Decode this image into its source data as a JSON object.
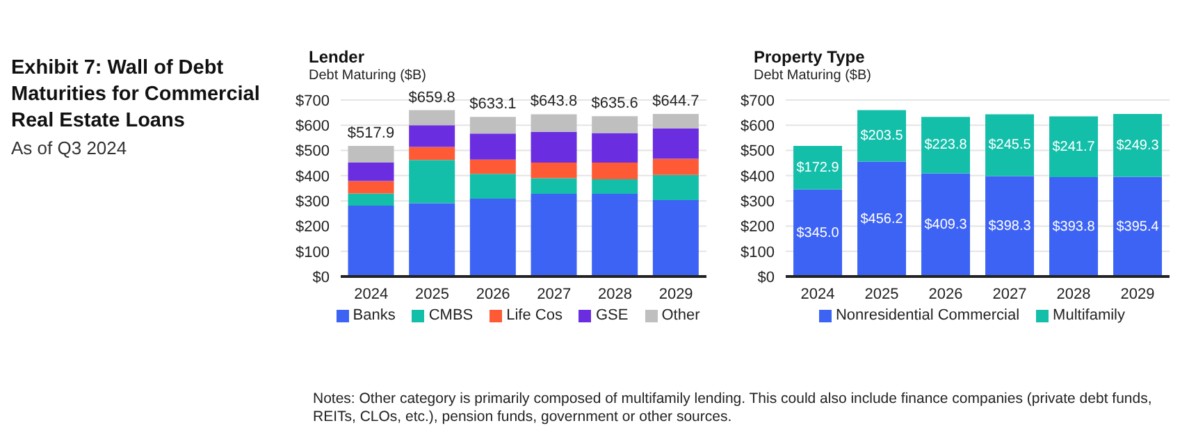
{
  "chart_data": [
    {
      "type": "other",
      "title": "Exhibit 7: Wall of Debt Maturities for Commercial Real Estate Loans",
      "subtitle": "As of Q3 2024",
      "annotations": [
        "Notes: Other category is primarily composed of multifamily lending. This could also include finance companies (private debt funds, REITs, CLOs, etc.), pension funds, government or other sources."
      ]
    },
    {
      "type": "bar",
      "title": "Lender",
      "ylabel": "Debt Maturing ($B)",
      "categories": [
        "2024",
        "2025",
        "2026",
        "2027",
        "2028",
        "2029"
      ],
      "stacked": true,
      "series": [
        {
          "name": "Banks",
          "color": "#3d63f5",
          "values": [
            281,
            291,
            309,
            328,
            328,
            303
          ]
        },
        {
          "name": "CMBS",
          "color": "#14bfaa",
          "values": [
            48,
            171,
            98,
            62,
            58,
            100
          ]
        },
        {
          "name": "Life Cos",
          "color": "#ff5a36",
          "values": [
            50,
            52,
            57,
            62,
            66,
            64
          ]
        },
        {
          "name": "GSE",
          "color": "#6a2ee0",
          "values": [
            73,
            86,
            103,
            122,
            117,
            121
          ]
        },
        {
          "name": "Other",
          "color": "#bfbfbf",
          "values": [
            65.9,
            59.8,
            66.1,
            69.8,
            66.6,
            56.7
          ]
        }
      ],
      "totals": [
        "$517.9",
        "$659.8",
        "$633.1",
        "$643.8",
        "$635.6",
        "$644.7"
      ],
      "ylim": [
        0,
        700
      ],
      "yticks": [
        {
          "value": 0,
          "label": "$0"
        },
        {
          "value": 100,
          "label": "$100"
        },
        {
          "value": 200,
          "label": "$200"
        },
        {
          "value": 300,
          "label": "$300"
        },
        {
          "value": 400,
          "label": "$400"
        },
        {
          "value": 500,
          "label": "$500"
        },
        {
          "value": 600,
          "label": "$600"
        },
        {
          "value": 700,
          "label": "$700"
        }
      ],
      "grid": "y",
      "legend": "bottom"
    },
    {
      "type": "bar",
      "title": "Property Type",
      "ylabel": "Debt Maturing ($B)",
      "categories": [
        "2024",
        "2025",
        "2026",
        "2027",
        "2028",
        "2029"
      ],
      "stacked": true,
      "series": [
        {
          "name": "Nonresidential Commercial",
          "color": "#3d63f5",
          "values": [
            345.0,
            456.2,
            409.3,
            398.3,
            393.8,
            395.4
          ],
          "value_labels": [
            "$345.0",
            "$456.2",
            "$409.3",
            "$398.3",
            "$393.8",
            "$395.4"
          ]
        },
        {
          "name": "Multifamily",
          "color": "#14bfaa",
          "values": [
            172.9,
            203.5,
            223.8,
            245.5,
            241.7,
            249.3
          ],
          "value_labels": [
            "$172.9",
            "$203.5",
            "$223.8",
            "$245.5",
            "$241.7",
            "$249.3"
          ]
        }
      ],
      "ylim": [
        0,
        700
      ],
      "yticks": [
        {
          "value": 0,
          "label": "$0"
        },
        {
          "value": 100,
          "label": "$100"
        },
        {
          "value": 200,
          "label": "$200"
        },
        {
          "value": 300,
          "label": "$300"
        },
        {
          "value": 400,
          "label": "$400"
        },
        {
          "value": 500,
          "label": "$500"
        },
        {
          "value": 600,
          "label": "$600"
        },
        {
          "value": 700,
          "label": "$700"
        }
      ],
      "grid": "y",
      "legend": "bottom"
    }
  ]
}
